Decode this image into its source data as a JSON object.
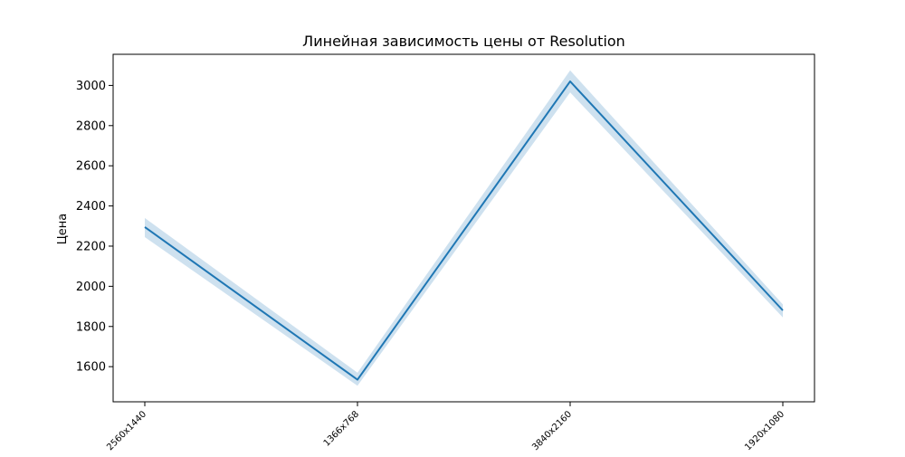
{
  "chart_data": {
    "type": "line",
    "title": "Линейная зависимость цены от Resolution",
    "xlabel": "",
    "ylabel": "Цена",
    "categories": [
      "2560x1440",
      "1366x768",
      "3840x2160",
      "1920x1080"
    ],
    "series": [
      {
        "values": [
          2295,
          1535,
          3020,
          1880
        ],
        "ci_low": [
          2245,
          1505,
          2965,
          1845
        ],
        "ci_high": [
          2340,
          1570,
          3075,
          1910
        ]
      }
    ],
    "y_ticks": [
      1600,
      1800,
      2000,
      2200,
      2400,
      2600,
      2800,
      3000
    ],
    "ylim": [
      1425,
      3155
    ],
    "grid": false,
    "legend": "none",
    "colors": {
      "line": "#1f77b4",
      "band": "#1f77b4"
    }
  }
}
